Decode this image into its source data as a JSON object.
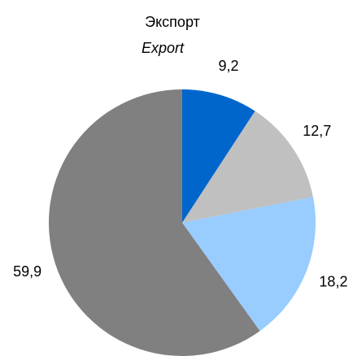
{
  "chart_data": {
    "type": "pie",
    "title": "Экспорт",
    "subtitle": "Export",
    "values": [
      9.2,
      12.7,
      18.2,
      59.9
    ],
    "value_labels": [
      "9,2",
      "12,7",
      "18,2",
      "59,9"
    ],
    "colors": [
      "#0066cc",
      "#c0c0c0",
      "#99ccff",
      "#808080"
    ]
  }
}
